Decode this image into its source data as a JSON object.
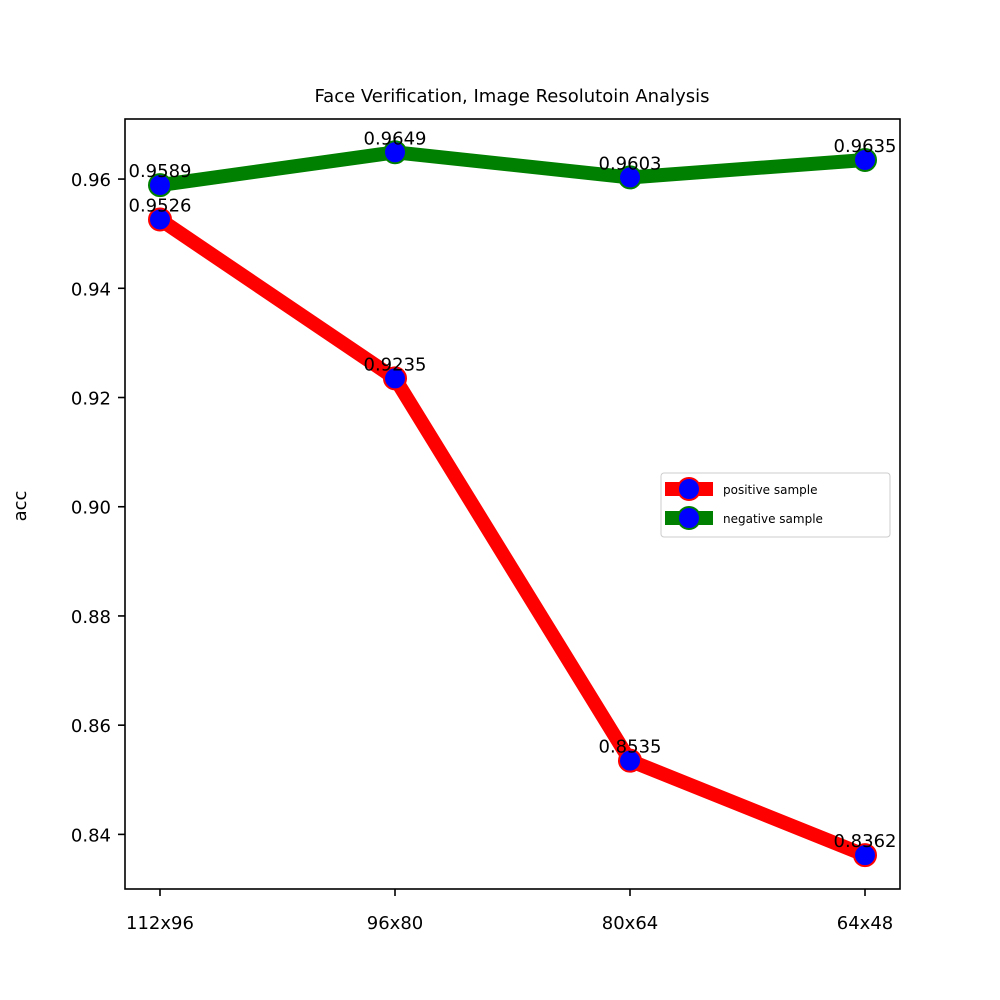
{
  "chart_data": {
    "type": "line",
    "title": "Face Verification, Image Resolutoin Analysis",
    "xlabel": "",
    "ylabel": "acc",
    "categories": [
      "112x96",
      "96x80",
      "80x64",
      "64x48"
    ],
    "ylim": [
      0.83,
      0.971
    ],
    "yticks": [
      0.84,
      0.86,
      0.88,
      0.9,
      0.92,
      0.94,
      0.96
    ],
    "ytick_labels": [
      "0.84",
      "0.86",
      "0.88",
      "0.90",
      "0.92",
      "0.94",
      "0.96"
    ],
    "grid": false,
    "legend_position": "right",
    "series": [
      {
        "name": "positive sample",
        "values": [
          0.9526,
          0.9235,
          0.8535,
          0.8362
        ],
        "labels": [
          "0.9526",
          "0.9235",
          "0.8535",
          "0.8362"
        ],
        "line_color": "#ff0000",
        "marker_face": "#0000ff",
        "marker_edge": "#ff0000"
      },
      {
        "name": "negative sample",
        "values": [
          0.9589,
          0.9649,
          0.9603,
          0.9635
        ],
        "labels": [
          "0.9589",
          "0.9649",
          "0.9603",
          "0.9635"
        ],
        "line_color": "#008000",
        "marker_face": "#0000ff",
        "marker_edge": "#008000"
      }
    ]
  }
}
